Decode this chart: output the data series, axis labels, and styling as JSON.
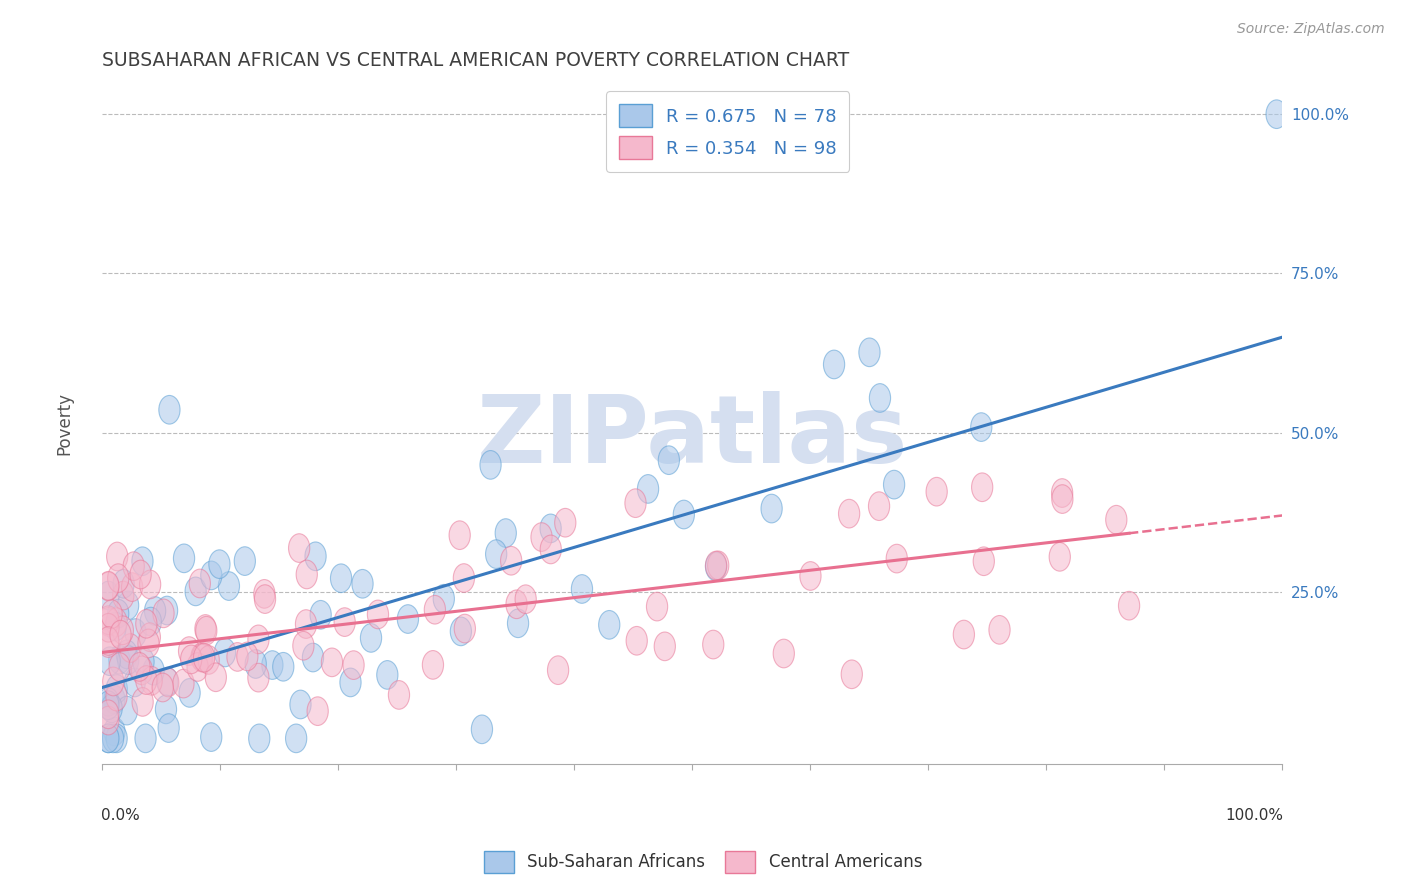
{
  "title": "SUBSAHARAN AFRICAN VS CENTRAL AMERICAN POVERTY CORRELATION CHART",
  "source": "Source: ZipAtlas.com",
  "ylabel": "Poverty",
  "ytick_labels": [
    "25.0%",
    "50.0%",
    "75.0%",
    "100.0%"
  ],
  "ytick_values": [
    0.25,
    0.5,
    0.75,
    1.0
  ],
  "xlim": [
    0.0,
    1.0
  ],
  "ylim": [
    -0.02,
    1.05
  ],
  "blue_scatter_face": "#aac8ea",
  "blue_scatter_edge": "#5a9fd4",
  "pink_scatter_face": "#f5b8cc",
  "pink_scatter_edge": "#e87898",
  "blue_line_color": "#3a7abf",
  "pink_line_color": "#e87090",
  "background_color": "#ffffff",
  "grid_color": "#bbbbbb",
  "title_color": "#404040",
  "source_color": "#999999",
  "ylabel_color": "#555555",
  "ytick_color": "#3a7abf",
  "watermark": "ZIPatlas",
  "watermark_color": "#d5dff0",
  "blue_line_start_x": 0.0,
  "blue_line_start_y": 0.1,
  "blue_line_end_x": 1.0,
  "blue_line_end_y": 0.65,
  "pink_line_start_x": 0.0,
  "pink_line_start_y": 0.155,
  "pink_line_solid_end_x": 0.87,
  "pink_line_end_x": 1.0,
  "pink_line_end_y": 0.37,
  "legend_label1": "R = 0.675   N = 78",
  "legend_label2": "R = 0.354   N = 98",
  "legend_color1": "#3a7abf",
  "legend_face1": "#aac8ea",
  "legend_face2": "#f5b8cc",
  "bottom_label1": "Sub-Saharan Africans",
  "bottom_label2": "Central Americans",
  "blue_seed": 42,
  "pink_seed": 99,
  "n_blue": 78,
  "n_pink": 98
}
